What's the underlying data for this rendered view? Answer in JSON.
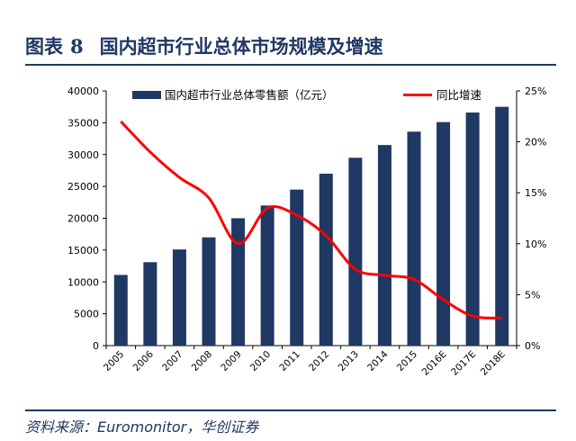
{
  "figure": {
    "label": "图表",
    "number": "8",
    "title": "国内超市行业总体市场规模及增速"
  },
  "source": "资料来源：Euromonitor，华创证券",
  "colors": {
    "bar": "#1f3864",
    "line": "#ff0000",
    "header": "#1f3864"
  },
  "chart_data": {
    "type": "bar",
    "categories": [
      "2005",
      "2006",
      "2007",
      "2008",
      "2009",
      "2010",
      "2011",
      "2012",
      "2013",
      "2014",
      "2015",
      "2016E",
      "2017E",
      "2018E"
    ],
    "series": [
      {
        "name": "国内超市行业总体零售额（亿元）",
        "type": "bar",
        "axis": "left",
        "values": [
          11100,
          13100,
          15100,
          17000,
          20000,
          22000,
          24500,
          27000,
          29500,
          31500,
          33600,
          35100,
          36600,
          37500
        ]
      },
      {
        "name": "同比增速",
        "type": "line",
        "axis": "right",
        "unit": "%",
        "values": [
          22.0,
          19.0,
          16.5,
          14.5,
          10.0,
          13.5,
          12.8,
          10.8,
          7.5,
          6.9,
          6.5,
          4.5,
          2.9,
          2.7
        ]
      }
    ],
    "y_left": {
      "min": 0,
      "max": 40000,
      "ticks": [
        "0",
        "5000",
        "10000",
        "15000",
        "20000",
        "25000",
        "30000",
        "35000",
        "40000"
      ]
    },
    "y_right": {
      "min": 0,
      "max": 25,
      "ticks": [
        "0%",
        "5%",
        "10%",
        "15%",
        "20%",
        "25%"
      ]
    },
    "grid": false,
    "legend_position": "top"
  }
}
